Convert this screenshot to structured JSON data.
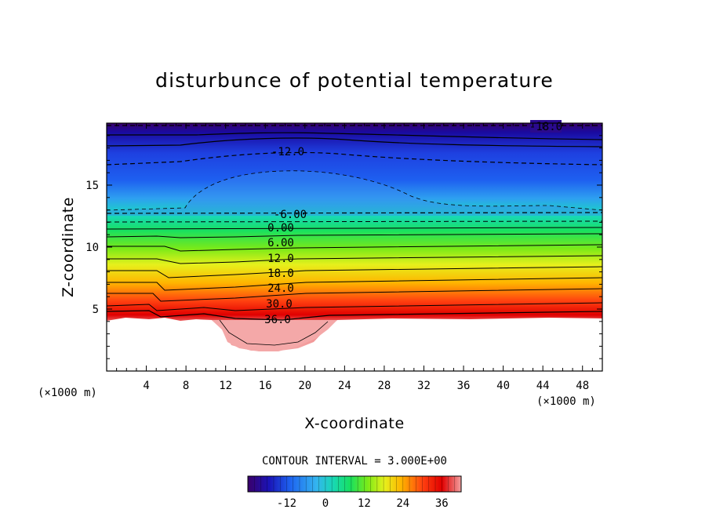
{
  "chart_data": {
    "type": "heatmap",
    "title": "disturbunce of potential temperature",
    "xlabel": "X-coordinate",
    "ylabel": "Z-coordinate",
    "x_unit": "(×1000 m)",
    "y_unit": "(×1000 m)",
    "xlim": [
      0,
      50
    ],
    "ylim": [
      0,
      20
    ],
    "x_ticks": [
      "4",
      "8",
      "12",
      "16",
      "20",
      "24",
      "28",
      "32",
      "36",
      "40",
      "44",
      "48"
    ],
    "y_ticks": [
      "5",
      "10",
      "15"
    ],
    "contour_interval_text": "CONTOUR INTERVAL = 3.000E+00",
    "contour_interval": 3,
    "contour_labels": [
      "-18.0",
      "-12.0",
      "-6.00",
      "0.00",
      "6.00",
      "12.0",
      "18.0",
      "24.0",
      "30.0",
      "36.0"
    ],
    "colorbar": {
      "range": [
        -24,
        42
      ],
      "tick_labels": [
        "-12",
        "0",
        "12",
        "24",
        "36"
      ],
      "colors": [
        "#3a006a",
        "#1a14b8",
        "#1e64f0",
        "#34b4f0",
        "#18d8b4",
        "#18e060",
        "#7aea18",
        "#e6f01c",
        "#ffb400",
        "#ff4010",
        "#e00000",
        "#f2a0a0"
      ]
    },
    "grid": false,
    "legend": "none"
  }
}
